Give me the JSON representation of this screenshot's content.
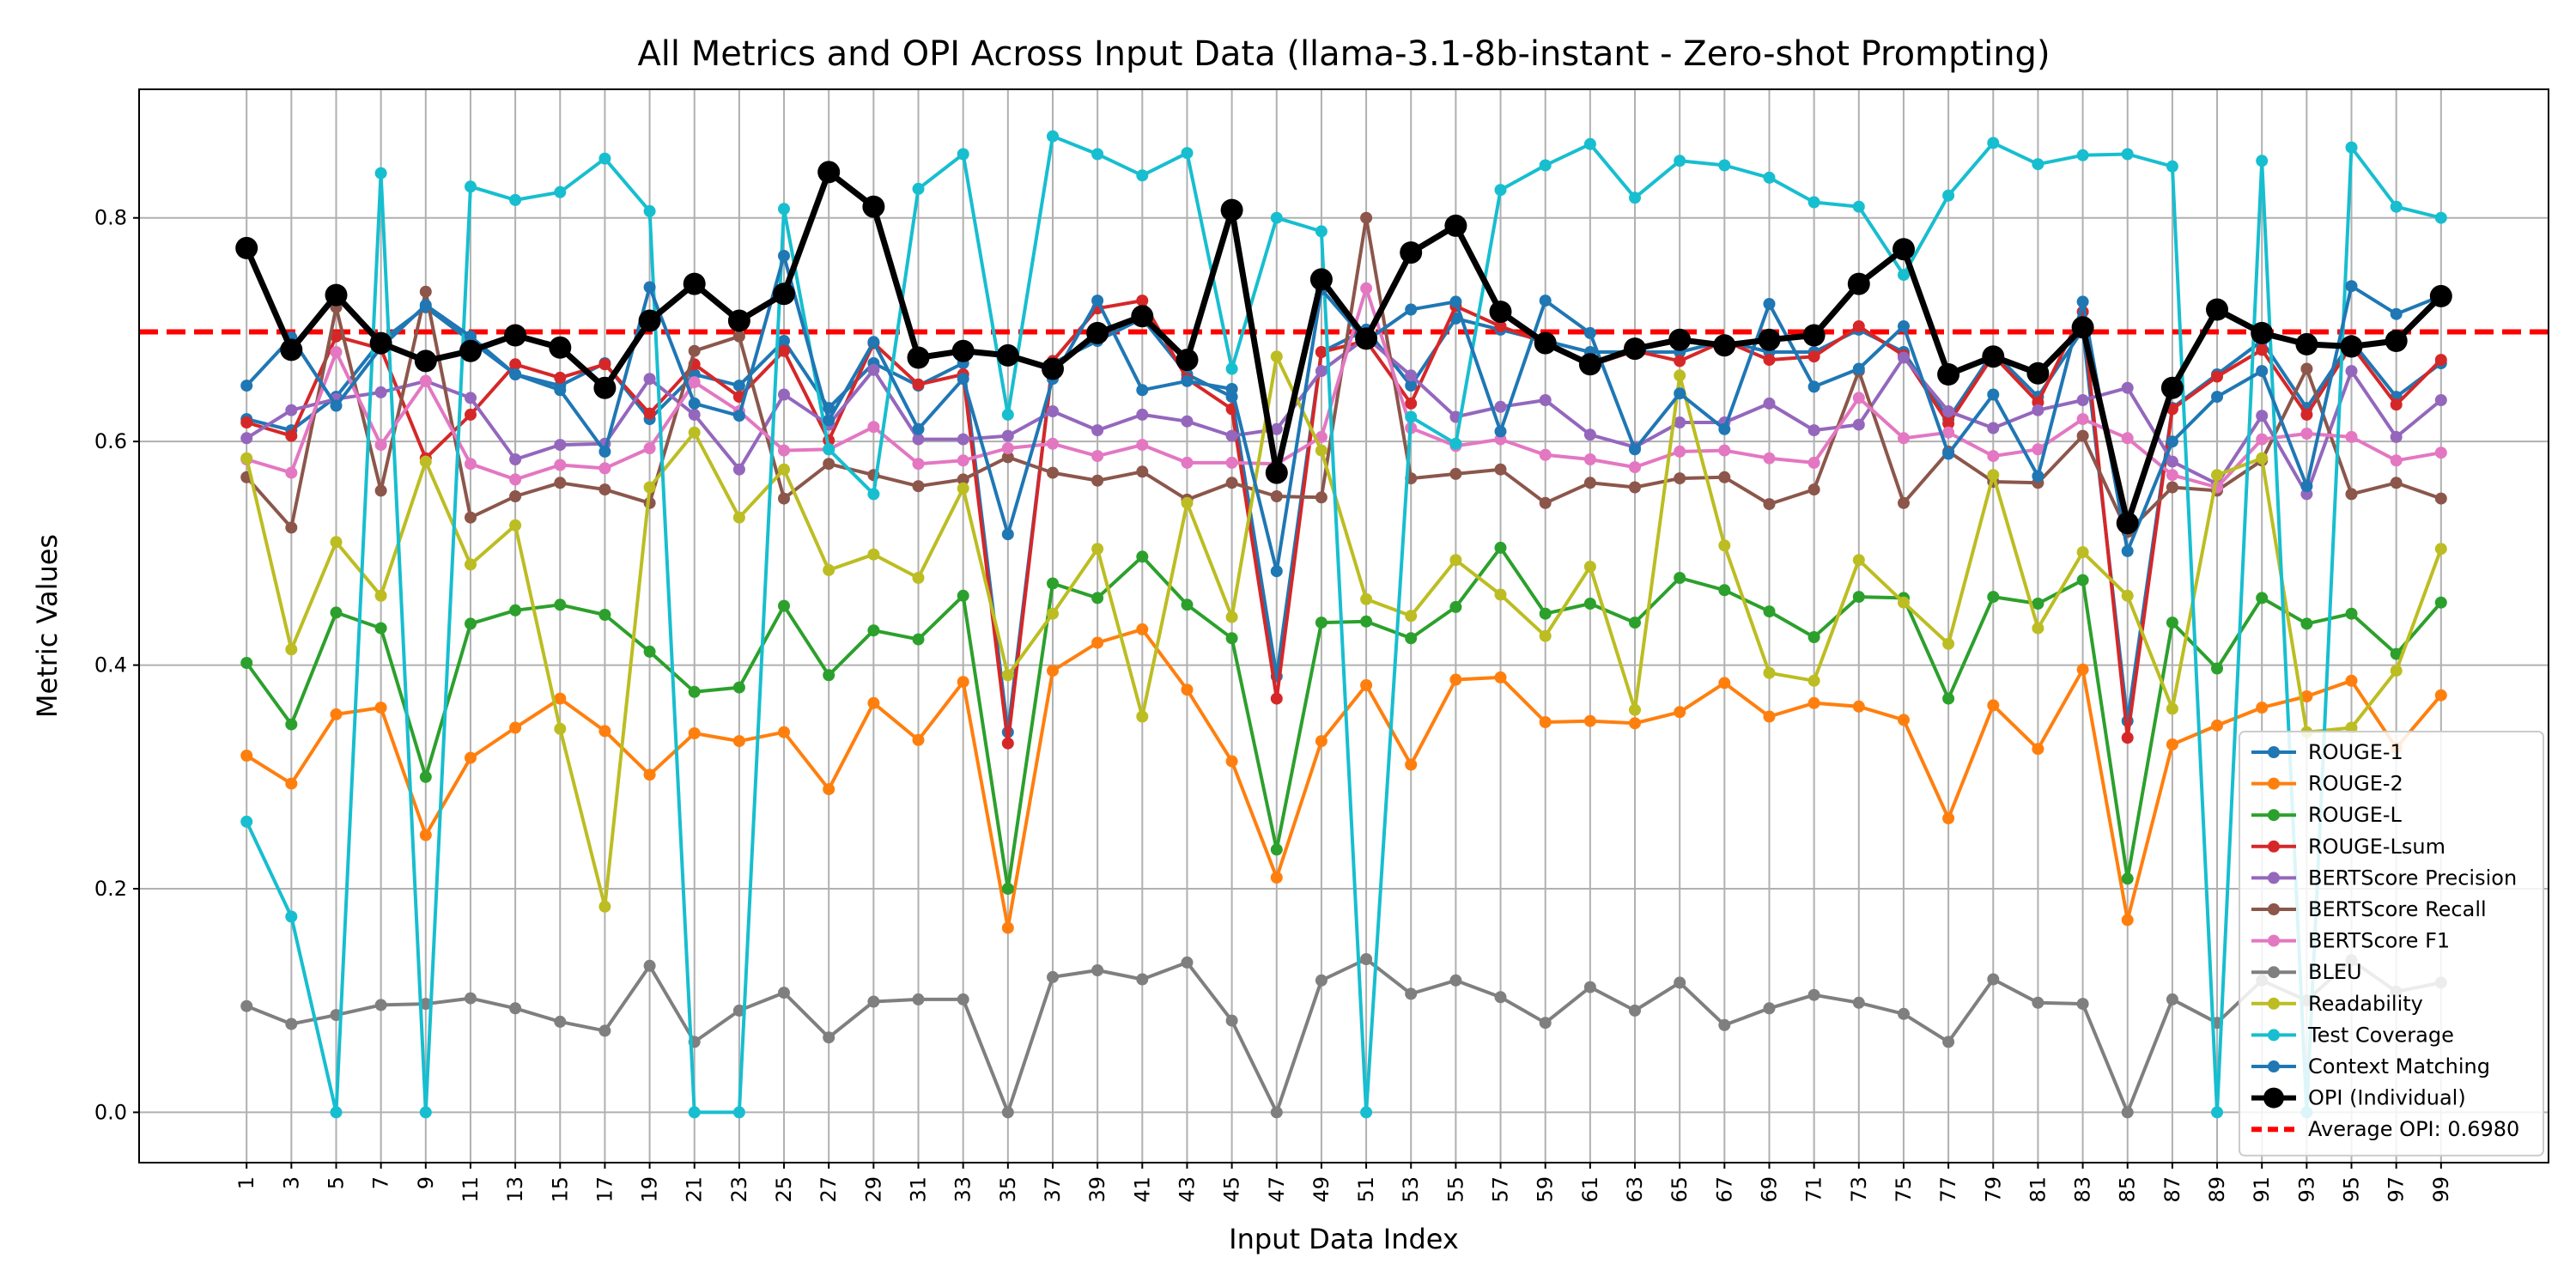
{
  "chart_data": {
    "type": "line",
    "title": "All Metrics and OPI Across Input Data (llama-3.1-8b-instant - Zero-shot Prompting)",
    "xlabel": "Input Data Index",
    "ylabel": "Metric Values",
    "xlim": [
      -3.8,
      103.8
    ],
    "ylim": [
      -0.045,
      0.915
    ],
    "grid": true,
    "legend_position": "lower-right",
    "x": [
      1,
      3,
      5,
      7,
      9,
      11,
      13,
      15,
      17,
      19,
      21,
      23,
      25,
      27,
      29,
      31,
      33,
      35,
      37,
      39,
      41,
      43,
      45,
      47,
      49,
      51,
      53,
      55,
      57,
      59,
      61,
      63,
      65,
      67,
      69,
      71,
      73,
      75,
      77,
      79,
      81,
      83,
      85,
      87,
      89,
      91,
      93,
      95,
      97,
      99
    ],
    "xticks": [
      "1",
      "3",
      "5",
      "7",
      "9",
      "11",
      "13",
      "15",
      "17",
      "19",
      "21",
      "23",
      "25",
      "27",
      "29",
      "31",
      "33",
      "35",
      "37",
      "39",
      "41",
      "43",
      "45",
      "47",
      "49",
      "51",
      "53",
      "55",
      "57",
      "59",
      "61",
      "63",
      "65",
      "67",
      "69",
      "71",
      "73",
      "75",
      "77",
      "79",
      "81",
      "83",
      "85",
      "87",
      "89",
      "91",
      "93",
      "95",
      "97",
      "99"
    ],
    "yticks": [
      "0.0",
      "0.2",
      "0.4",
      "0.6",
      "0.8"
    ],
    "ytick_values": [
      0.0,
      0.2,
      0.4,
      0.6,
      0.8
    ],
    "series": [
      {
        "name": "ROUGE-1",
        "color": "#1f77b4",
        "values": [
          0.62,
          0.61,
          0.64,
          0.69,
          0.72,
          0.69,
          0.66,
          0.65,
          0.67,
          0.62,
          0.66,
          0.65,
          0.69,
          0.63,
          0.67,
          0.65,
          0.67,
          0.34,
          0.67,
          0.69,
          0.71,
          0.66,
          0.64,
          0.39,
          0.68,
          0.7,
          0.65,
          0.71,
          0.7,
          0.69,
          0.68,
          0.68,
          0.68,
          0.69,
          0.68,
          0.68,
          0.7,
          0.68,
          0.62,
          0.68,
          0.64,
          0.7,
          0.35,
          0.63,
          0.66,
          0.69,
          0.63,
          0.69,
          0.64,
          0.67
        ]
      },
      {
        "name": "ROUGE-2",
        "color": "#ff7f0e",
        "values": [
          0.319,
          0.294,
          0.356,
          0.362,
          0.248,
          0.317,
          0.344,
          0.37,
          0.341,
          0.302,
          0.339,
          0.332,
          0.34,
          0.289,
          0.366,
          0.333,
          0.385,
          0.165,
          0.395,
          0.42,
          0.432,
          0.378,
          0.314,
          0.21,
          0.332,
          0.382,
          0.311,
          0.387,
          0.389,
          0.349,
          0.35,
          0.348,
          0.358,
          0.384,
          0.354,
          0.366,
          0.363,
          0.351,
          0.263,
          0.364,
          0.325,
          0.396,
          0.172,
          0.329,
          0.346,
          0.362,
          0.372,
          0.386,
          0.326,
          0.373
        ]
      },
      {
        "name": "ROUGE-L",
        "color": "#2ca02c",
        "values": [
          0.402,
          0.347,
          0.447,
          0.433,
          0.3,
          0.437,
          0.449,
          0.454,
          0.445,
          0.412,
          0.376,
          0.38,
          0.453,
          0.391,
          0.431,
          0.423,
          0.462,
          0.2,
          0.473,
          0.46,
          0.497,
          0.454,
          0.424,
          0.235,
          0.438,
          0.439,
          0.424,
          0.452,
          0.505,
          0.446,
          0.455,
          0.438,
          0.478,
          0.467,
          0.448,
          0.425,
          0.461,
          0.46,
          0.37,
          0.461,
          0.455,
          0.476,
          0.209,
          0.438,
          0.397,
          0.46,
          0.437,
          0.446,
          0.41,
          0.456
        ]
      },
      {
        "name": "ROUGE-Lsum",
        "color": "#d62728",
        "values": [
          0.617,
          0.605,
          0.694,
          0.683,
          0.585,
          0.624,
          0.669,
          0.657,
          0.669,
          0.625,
          0.669,
          0.64,
          0.681,
          0.601,
          0.688,
          0.651,
          0.66,
          0.33,
          0.672,
          0.719,
          0.726,
          0.656,
          0.629,
          0.37,
          0.68,
          0.69,
          0.634,
          0.721,
          0.703,
          0.688,
          0.668,
          0.681,
          0.672,
          0.69,
          0.673,
          0.676,
          0.703,
          0.677,
          0.616,
          0.677,
          0.635,
          0.716,
          0.335,
          0.629,
          0.658,
          0.682,
          0.624,
          0.686,
          0.633,
          0.673
        ]
      },
      {
        "name": "BERTScore Precision",
        "color": "#9467bd",
        "values": [
          0.603,
          0.628,
          0.638,
          0.644,
          0.654,
          0.639,
          0.584,
          0.597,
          0.598,
          0.656,
          0.624,
          0.575,
          0.642,
          0.615,
          0.664,
          0.602,
          0.602,
          0.605,
          0.627,
          0.61,
          0.624,
          0.618,
          0.605,
          0.611,
          0.663,
          0.693,
          0.659,
          0.622,
          0.631,
          0.637,
          0.606,
          0.595,
          0.617,
          0.617,
          0.634,
          0.61,
          0.615,
          0.675,
          0.627,
          0.612,
          0.628,
          0.637,
          0.648,
          0.582,
          0.562,
          0.623,
          0.553,
          0.663,
          0.604,
          0.637
        ]
      },
      {
        "name": "BERTScore Recall",
        "color": "#8c564b",
        "values": [
          0.568,
          0.523,
          0.72,
          0.556,
          0.734,
          0.532,
          0.551,
          0.563,
          0.557,
          0.545,
          0.681,
          0.694,
          0.549,
          0.58,
          0.57,
          0.56,
          0.566,
          0.586,
          0.572,
          0.565,
          0.573,
          0.548,
          0.563,
          0.551,
          0.55,
          0.8,
          0.567,
          0.571,
          0.575,
          0.545,
          0.563,
          0.559,
          0.567,
          0.568,
          0.544,
          0.557,
          0.663,
          0.545,
          0.591,
          0.564,
          0.563,
          0.605,
          0.519,
          0.559,
          0.556,
          0.583,
          0.665,
          0.553,
          0.563,
          0.549
        ]
      },
      {
        "name": "BERTScore F1",
        "color": "#e377c2",
        "values": [
          0.584,
          0.572,
          0.68,
          0.597,
          0.654,
          0.58,
          0.566,
          0.579,
          0.576,
          0.594,
          0.653,
          0.627,
          0.592,
          0.593,
          0.613,
          0.58,
          0.583,
          0.594,
          0.598,
          0.587,
          0.597,
          0.581,
          0.581,
          0.58,
          0.604,
          0.737,
          0.612,
          0.596,
          0.602,
          0.588,
          0.584,
          0.577,
          0.591,
          0.592,
          0.585,
          0.581,
          0.639,
          0.603,
          0.608,
          0.587,
          0.593,
          0.62,
          0.603,
          0.57,
          0.559,
          0.602,
          0.607,
          0.604,
          0.583,
          0.59
        ]
      },
      {
        "name": "BLEU",
        "color": "#7f7f7f",
        "values": [
          0.095,
          0.079,
          0.087,
          0.096,
          0.097,
          0.102,
          0.093,
          0.081,
          0.073,
          0.131,
          0.063,
          0.091,
          0.107,
          0.067,
          0.099,
          0.101,
          0.101,
          0.0,
          0.121,
          0.127,
          0.119,
          0.134,
          0.082,
          0.0,
          0.118,
          0.137,
          0.106,
          0.118,
          0.103,
          0.08,
          0.112,
          0.091,
          0.116,
          0.078,
          0.093,
          0.105,
          0.098,
          0.088,
          0.063,
          0.119,
          0.098,
          0.097,
          0.0,
          0.101,
          0.08,
          0.118,
          0.1,
          0.136,
          0.108,
          0.116
        ]
      },
      {
        "name": "Readability",
        "color": "#bcbd22",
        "values": [
          0.585,
          0.414,
          0.51,
          0.462,
          0.582,
          0.49,
          0.525,
          0.343,
          0.184,
          0.559,
          0.608,
          0.532,
          0.575,
          0.485,
          0.499,
          0.478,
          0.558,
          0.391,
          0.446,
          0.504,
          0.354,
          0.545,
          0.443,
          0.676,
          0.592,
          0.459,
          0.444,
          0.494,
          0.463,
          0.426,
          0.488,
          0.36,
          0.659,
          0.507,
          0.393,
          0.386,
          0.494,
          0.456,
          0.419,
          0.57,
          0.433,
          0.501,
          0.462,
          0.361,
          0.57,
          0.585,
          0.34,
          0.344,
          0.395,
          0.504
        ]
      },
      {
        "name": "Test Coverage",
        "color": "#17becf",
        "values": [
          0.26,
          0.175,
          0.0,
          0.84,
          0.0,
          0.828,
          0.816,
          0.823,
          0.853,
          0.806,
          0.0,
          0.0,
          0.808,
          0.593,
          0.553,
          0.826,
          0.857,
          0.624,
          0.873,
          0.857,
          0.838,
          0.858,
          0.665,
          0.8,
          0.788,
          0.0,
          0.622,
          0.598,
          0.825,
          0.847,
          0.866,
          0.818,
          0.851,
          0.847,
          0.836,
          0.814,
          0.81,
          0.749,
          0.82,
          0.867,
          0.848,
          0.856,
          0.857,
          0.846,
          0.0,
          0.851,
          0.0,
          0.863,
          0.81,
          0.8
        ]
      },
      {
        "name": "Context Matching",
        "color": "#1f77b4",
        "values": [
          0.65,
          0.693,
          0.632,
          0.684,
          0.722,
          0.694,
          0.66,
          0.646,
          0.591,
          0.738,
          0.634,
          0.623,
          0.766,
          0.619,
          0.689,
          0.611,
          0.656,
          0.517,
          0.656,
          0.726,
          0.646,
          0.654,
          0.647,
          0.484,
          0.736,
          0.69,
          0.718,
          0.725,
          0.609,
          0.726,
          0.697,
          0.593,
          0.643,
          0.611,
          0.723,
          0.649,
          0.665,
          0.703,
          0.589,
          0.642,
          0.569,
          0.725,
          0.502,
          0.6,
          0.64,
          0.663,
          0.56,
          0.739,
          0.714,
          0.73
        ]
      },
      {
        "name": "OPI (Individual)",
        "color": "#000000",
        "values": [
          0.773,
          0.682,
          0.731,
          0.688,
          0.672,
          0.681,
          0.695,
          0.684,
          0.648,
          0.708,
          0.741,
          0.708,
          0.732,
          0.841,
          0.81,
          0.675,
          0.681,
          0.677,
          0.665,
          0.697,
          0.712,
          0.673,
          0.807,
          0.572,
          0.745,
          0.692,
          0.769,
          0.793,
          0.716,
          0.688,
          0.669,
          0.683,
          0.691,
          0.686,
          0.691,
          0.695,
          0.741,
          0.772,
          0.66,
          0.676,
          0.661,
          0.702,
          0.527,
          0.648,
          0.718,
          0.697,
          0.687,
          0.685,
          0.69,
          0.73
        ]
      }
    ],
    "average_line": {
      "name": "Average OPI: 0.6980",
      "value": 0.698,
      "color": "#ff0000"
    }
  }
}
